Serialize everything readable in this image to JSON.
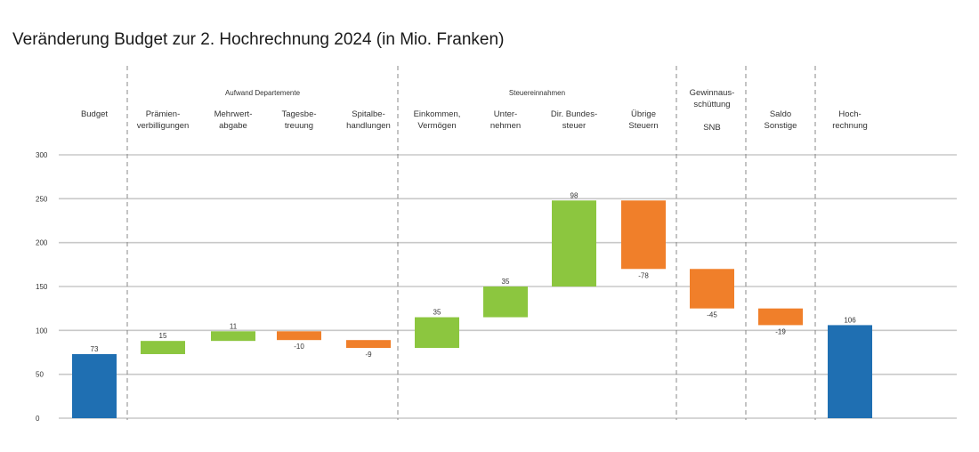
{
  "title": "Veränderung Budget zur 2. Hochrechnung 2024 (in Mio. Franken)",
  "groups": [
    {
      "label": "Aufwand Departemente"
    },
    {
      "label": "Steuereinnahmen"
    }
  ],
  "colors": {
    "total": "#1f6fb2",
    "increase": "#8cc63f",
    "decrease": "#f07f2a",
    "grid": "#c8c8c8",
    "separator": "#888888"
  },
  "chart_data": {
    "type": "bar",
    "subtype": "waterfall",
    "title": "Veränderung Budget zur 2. Hochrechnung 2024 (in Mio. Franken)",
    "ylim": [
      0,
      300
    ],
    "yticks": [
      0,
      50,
      100,
      150,
      200,
      250,
      300
    ],
    "grid": true,
    "categories": [
      {
        "lines": [
          "Budget"
        ],
        "value": 73,
        "label": "73",
        "kind": "total"
      },
      {
        "lines": [
          "Prämien-",
          "verbilligungen"
        ],
        "value": 15,
        "label": "15",
        "kind": "increase"
      },
      {
        "lines": [
          "Mehrwert-",
          "abgabe"
        ],
        "value": 11,
        "label": "11",
        "kind": "increase"
      },
      {
        "lines": [
          "Tagesbe-",
          "treuung"
        ],
        "value": -10,
        "label": "-10",
        "kind": "decrease"
      },
      {
        "lines": [
          "Spitalbe-",
          "handlungen"
        ],
        "value": -9,
        "label": "-9",
        "kind": "decrease"
      },
      {
        "lines": [
          "Einkommen,",
          "Vermögen"
        ],
        "value": 35,
        "label": "35",
        "kind": "increase"
      },
      {
        "lines": [
          "Unter-",
          "nehmen"
        ],
        "value": 35,
        "label": "35",
        "kind": "increase"
      },
      {
        "lines": [
          "Dir. Bundes-",
          "steuer"
        ],
        "value": 98,
        "label": "98",
        "kind": "increase"
      },
      {
        "lines": [
          "Übrige",
          "Steuern"
        ],
        "value": -78,
        "label": "-78",
        "kind": "decrease"
      },
      {
        "lines": [
          "Gewinnaus-",
          "schüttung",
          "",
          "SNB"
        ],
        "value": -45,
        "label": "-45",
        "kind": "decrease"
      },
      {
        "lines": [
          "Saldo",
          "Sonstige"
        ],
        "value": -19,
        "label": "-19",
        "kind": "decrease"
      },
      {
        "lines": [
          "Hoch-",
          "rechnung"
        ],
        "value": 106,
        "label": "106",
        "kind": "total"
      }
    ]
  }
}
